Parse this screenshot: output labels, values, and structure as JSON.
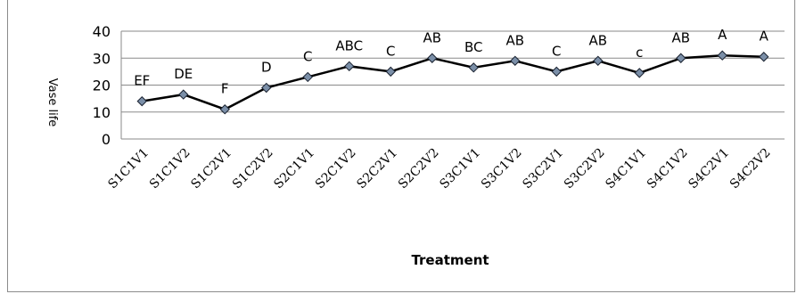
{
  "chart_data": {
    "type": "line",
    "xlabel": "Treatment",
    "ylabel": "Vase life",
    "ylim": [
      0,
      40
    ],
    "yticks": [
      0,
      10,
      20,
      30,
      40
    ],
    "grid": true,
    "categories": [
      "S1C1V1",
      "S1C1V2",
      "S1C2V1",
      "S1C2V2",
      "S2C1V1",
      "S2C1V2",
      "S2C2V1",
      "S2C2V2",
      "S3C1V1",
      "S3C1V2",
      "S3C2V1",
      "S3C2V2",
      "S4C1V1",
      "S4C1V2",
      "S4C2V1",
      "S4C2V2"
    ],
    "values": [
      14,
      16.5,
      11,
      19,
      23,
      27,
      25,
      30,
      26.5,
      29,
      25,
      29,
      24.5,
      30,
      31,
      30.5
    ],
    "labels": [
      "EF",
      "DE",
      "F",
      "D",
      "C",
      "ABC",
      "C",
      "AB",
      "BC",
      "AB",
      "C",
      "AB",
      "c",
      "AB",
      "A",
      "A"
    ],
    "series_color": "#000000",
    "marker_color": "#7b8fa8"
  }
}
